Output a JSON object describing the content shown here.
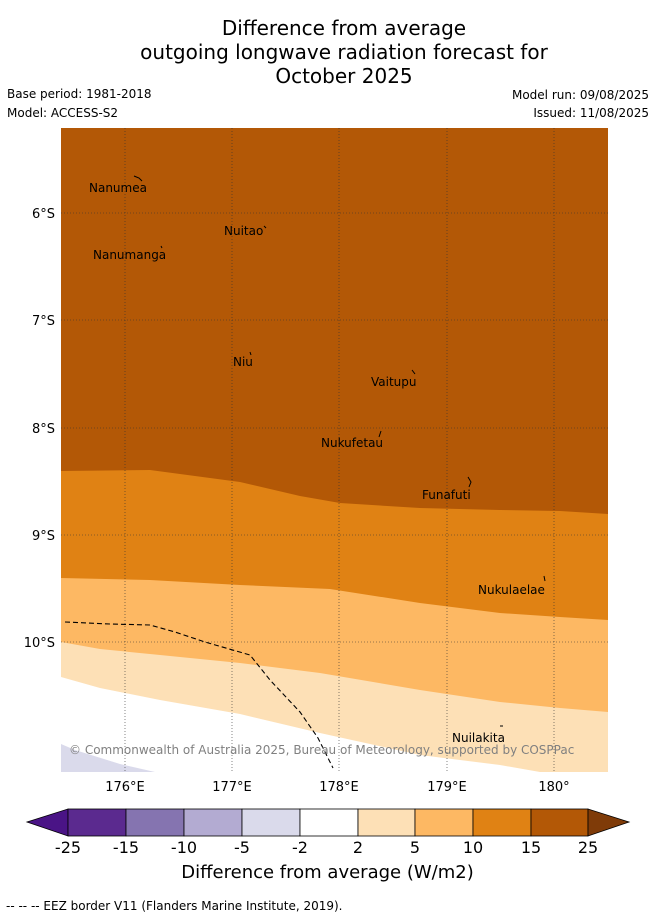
{
  "title": {
    "line1": "Difference from average",
    "line2": "outgoing longwave radiation forecast for",
    "line3": "October 2025"
  },
  "meta": {
    "base_period": "Base period: 1981-2018",
    "model": "Model: ACCESS-S2",
    "model_run": "Model run: 09/08/2025",
    "issued": "Issued: 11/08/2025"
  },
  "map": {
    "lat_labels": [
      "6°S",
      "7°S",
      "8°S",
      "9°S",
      "10°S"
    ],
    "lon_labels": [
      "176°E",
      "177°E",
      "178°E",
      "179°E",
      "180°"
    ],
    "places": [
      "Nanumea",
      "Nuitao",
      "Nanumanga",
      "Niu",
      "Vaitupu",
      "Nukufetau",
      "Funafuti",
      "Nukulaelae",
      "Nuilakita"
    ],
    "copyright": "© Commonwealth of Australia 2025, Bureau of Meteorology, supported by COSPPac"
  },
  "colorbar": {
    "ticks": [
      "-25",
      "-15",
      "-10",
      "-5",
      "-2",
      "2",
      "5",
      "10",
      "15",
      "25"
    ],
    "colors": [
      "#4a1486",
      "#5b2a8f",
      "#8574b0",
      "#b3abd2",
      "#dadaeb",
      "#ffffff",
      "#fde0b6",
      "#fdb863",
      "#e08214",
      "#b35806",
      "#7f3b08"
    ],
    "title": "Difference from average (W/m2)"
  },
  "footer": "--  --  -- EEZ border V11 (Flanders Marine Institute, 2019)."
}
